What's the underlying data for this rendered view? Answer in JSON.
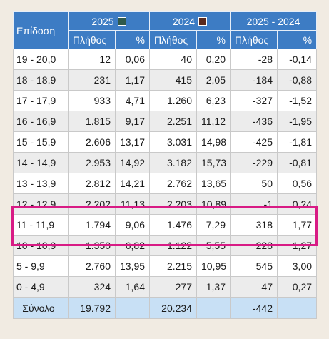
{
  "header": {
    "corner": "Επίδοση",
    "groups": [
      {
        "label": "2025",
        "swatch_color": "#2f5a4c"
      },
      {
        "label": "2024",
        "swatch_color": "#5a2a1e"
      },
      {
        "label": "2025 - 2024",
        "swatch_color": null
      }
    ],
    "sub": [
      "Πλήθος",
      "%",
      "Πλήθος",
      "%",
      "Πλήθος",
      "%"
    ]
  },
  "rows": [
    [
      "19 - 20,0",
      "12",
      "0,06",
      "40",
      "0,20",
      "-28",
      "-0,14"
    ],
    [
      "18 - 18,9",
      "231",
      "1,17",
      "415",
      "2,05",
      "-184",
      "-0,88"
    ],
    [
      "17 - 17,9",
      "933",
      "4,71",
      "1.260",
      "6,23",
      "-327",
      "-1,52"
    ],
    [
      "16 - 16,9",
      "1.815",
      "9,17",
      "2.251",
      "11,12",
      "-436",
      "-1,95"
    ],
    [
      "15 - 15,9",
      "2.606",
      "13,17",
      "3.031",
      "14,98",
      "-425",
      "-1,81"
    ],
    [
      "14 - 14,9",
      "2.953",
      "14,92",
      "3.182",
      "15,73",
      "-229",
      "-0,81"
    ],
    [
      "13 - 13,9",
      "2.812",
      "14,21",
      "2.762",
      "13,65",
      "50",
      "0,56"
    ],
    [
      "12 - 12,9",
      "2.202",
      "11,13",
      "2.203",
      "10,89",
      "-1",
      "0,24"
    ],
    [
      "11 - 11,9",
      "1.794",
      "9,06",
      "1.476",
      "7,29",
      "318",
      "1,77"
    ],
    [
      "10 - 10,9",
      "1.350",
      "6,82",
      "1.122",
      "5,55",
      "228",
      "1,27"
    ],
    [
      "5 - 9,9",
      "2.760",
      "13,95",
      "2.215",
      "10,95",
      "545",
      "3,00"
    ],
    [
      "0 - 4,9",
      "324",
      "1,64",
      "277",
      "1,37",
      "47",
      "0,27"
    ]
  ],
  "total": [
    "Σύνολο",
    "19.792",
    "",
    "20.234",
    "",
    "-442",
    ""
  ],
  "colors": {
    "header_bg": "#3d7cc4",
    "highlight_border": "#d81b85",
    "total_bg": "#c8e0f5",
    "page_bg": "#f1ebe2"
  }
}
